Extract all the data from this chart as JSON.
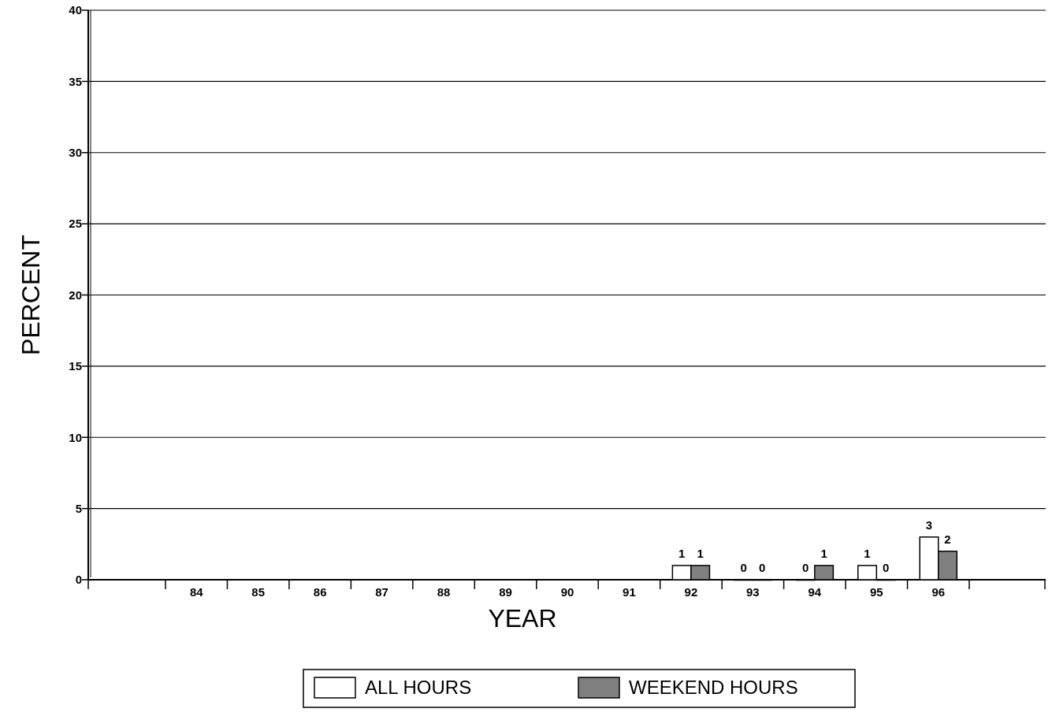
{
  "chart_data": {
    "type": "bar",
    "xlabel": "YEAR",
    "ylabel": "PERCENT",
    "categories": [
      "84",
      "85",
      "86",
      "87",
      "88",
      "89",
      "90",
      "91",
      "92",
      "93",
      "94",
      "95",
      "96"
    ],
    "series": [
      {
        "name": "ALL HOURS",
        "color": "#ffffff",
        "values": [
          null,
          null,
          null,
          null,
          null,
          null,
          null,
          null,
          1,
          0,
          0,
          1,
          3
        ]
      },
      {
        "name": "WEEKEND HOURS",
        "color": "#808080",
        "values": [
          null,
          null,
          null,
          null,
          null,
          null,
          null,
          null,
          1,
          0,
          1,
          0,
          2
        ]
      }
    ],
    "ylim": [
      0,
      40
    ],
    "yticks": [
      0,
      5,
      10,
      15,
      20,
      25,
      30,
      35,
      40
    ],
    "grid": "y",
    "legend": "bottom",
    "data_labels": true
  }
}
